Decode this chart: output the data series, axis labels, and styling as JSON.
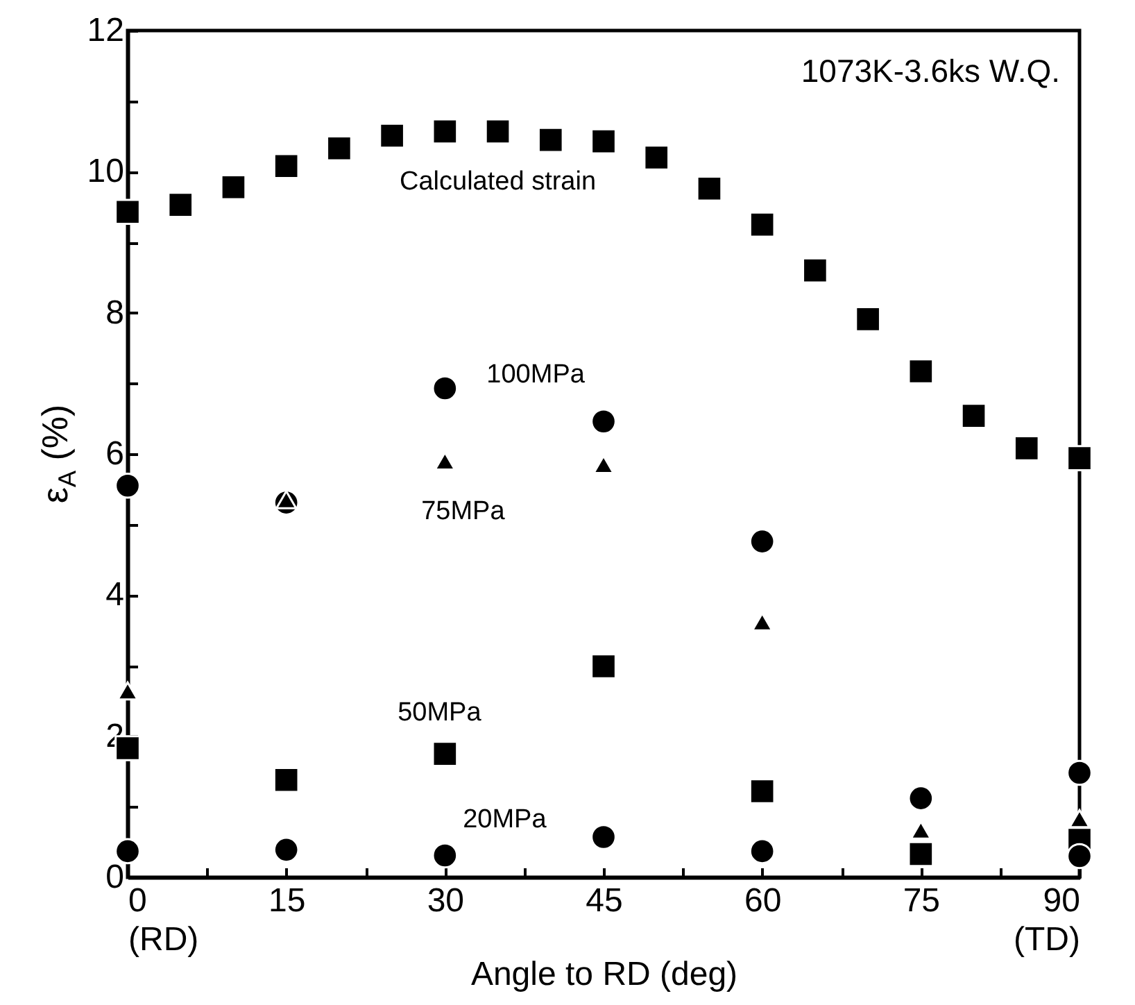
{
  "chart_data": {
    "type": "scatter",
    "xlabel": "Angle to RD (deg)",
    "ylabel": "ε$_{A}$ (%)",
    "annotations": [
      "1073K-3.6ks W.Q."
    ],
    "xlim": [
      0,
      90
    ],
    "ylim": [
      0,
      12
    ],
    "xticks": [
      {
        "value": 0,
        "label": "0\n(RD)"
      },
      {
        "value": 7.5,
        "label": null
      },
      15,
      {
        "value": 22.5,
        "label": null
      },
      30,
      {
        "value": 37.5,
        "label": null
      },
      45,
      {
        "value": 52.5,
        "label": null
      },
      60,
      {
        "value": 67.5,
        "label": null
      },
      75,
      {
        "value": 82.5,
        "label": null
      },
      {
        "value": 90,
        "label": "90\n(TD)"
      }
    ],
    "yticks": [
      0,
      {
        "value": 1,
        "label": null
      },
      2,
      {
        "value": 3,
        "label": null
      },
      4,
      {
        "value": 5,
        "label": null
      },
      6,
      {
        "value": 7,
        "label": null
      },
      8,
      {
        "value": 9,
        "label": null
      },
      10,
      {
        "value": 11,
        "label": null
      },
      12
    ],
    "grid": false,
    "legend": false,
    "series": [
      {
        "name": "Calculated strain",
        "color": "#000000",
        "marker": "square",
        "x": [
          0,
          5,
          10,
          15,
          20,
          25,
          30,
          35,
          40,
          45,
          50,
          55,
          60,
          65,
          70,
          75,
          80,
          85,
          90
        ],
        "values": [
          9.43,
          9.53,
          9.78,
          10.08,
          10.33,
          10.51,
          10.57,
          10.57,
          10.45,
          10.43,
          10.2,
          9.76,
          9.25,
          8.6,
          7.91,
          7.17,
          6.54,
          6.08,
          5.94
        ]
      },
      {
        "name": "100MPa",
        "color": "#000000",
        "marker": "circle",
        "x": [
          0,
          15,
          30,
          45,
          60,
          75,
          90
        ],
        "values": [
          5.55,
          5.31,
          6.93,
          6.46,
          4.76,
          1.12,
          1.48
        ]
      },
      {
        "name": "75MPa",
        "color": "#000000",
        "marker": "triangle",
        "x": [
          0,
          15,
          30,
          45,
          60,
          75,
          90
        ],
        "values": [
          2.64,
          5.35,
          5.9,
          5.85,
          3.62,
          0.67,
          0.83
        ]
      },
      {
        "name": "50MPa",
        "color": "#000000",
        "marker": "square",
        "x": [
          0,
          15,
          30,
          45,
          60,
          75,
          90
        ],
        "values": [
          1.83,
          1.38,
          1.75,
          2.99,
          1.22,
          0.33,
          0.53
        ]
      },
      {
        "name": "20MPa",
        "color": "#000000",
        "marker": "circle",
        "x": [
          0,
          15,
          30,
          45,
          60,
          75,
          90
        ],
        "values": [
          0.37,
          0.39,
          0.31,
          0.57,
          0.37,
          null,
          0.3
        ]
      }
    ]
  }
}
